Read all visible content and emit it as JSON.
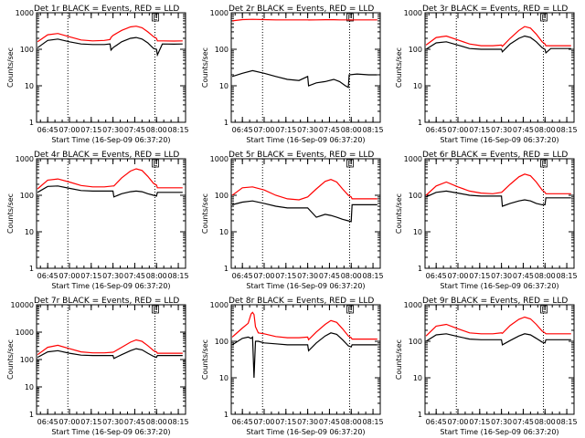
{
  "figure": {
    "x_ticks": [
      "06:45",
      "07:00",
      "07:15",
      "07:30",
      "07:45",
      "08:00",
      "08:15"
    ],
    "x_tick_minutes": [
      45,
      60,
      75,
      90,
      105,
      120,
      135
    ],
    "x_range_minutes": [
      37.33,
      140
    ],
    "dotted_line_minutes": [
      58.9,
      118.9
    ],
    "xlabel": "Start Time (16-Sep-09 06:37:20)",
    "ylabel": "Counts/sec",
    "marker_text": "E",
    "marker_minute": 118.9,
    "colors": {
      "events": "#000000",
      "lld": "#ff0000"
    }
  },
  "chart_data": [
    {
      "type": "line",
      "title": "Det 1r BLACK = Events, RED = LLD",
      "y_scale": "log",
      "ylim": [
        1,
        1000
      ],
      "y_ticks": [
        "1",
        "10",
        "100",
        "1000"
      ],
      "x": [
        38,
        45,
        52,
        60,
        68,
        76,
        84,
        88,
        88.6,
        90,
        96,
        102,
        106,
        110,
        114,
        118,
        120,
        120.6,
        124,
        132,
        138
      ],
      "series": [
        {
          "name": "LLD",
          "values": [
            160,
            250,
            270,
            220,
            180,
            170,
            175,
            185,
            210,
            240,
            330,
            410,
            430,
            390,
            300,
            220,
            200,
            170,
            170,
            168,
            170
          ]
        },
        {
          "name": "Events",
          "values": [
            110,
            175,
            190,
            160,
            140,
            135,
            135,
            140,
            95,
            110,
            160,
            200,
            210,
            190,
            150,
            105,
            100,
            70,
            140,
            138,
            140
          ]
        }
      ]
    },
    {
      "type": "line",
      "title": "Det 2r BLACK = Events, RED = LLD",
      "y_scale": "log",
      "ylim": [
        1,
        1000
      ],
      "y_ticks": [
        "1",
        "10",
        "100",
        "1000"
      ],
      "x": [
        38,
        45,
        52,
        60,
        68,
        76,
        84,
        90,
        90.6,
        96,
        102,
        108,
        112,
        116,
        118,
        118.6,
        124,
        132,
        138
      ],
      "series": [
        {
          "name": "LLD",
          "values": [
            600,
            650,
            660,
            650,
            640,
            640,
            640,
            640,
            635,
            640,
            645,
            645,
            640,
            640,
            640,
            635,
            640,
            640,
            640
          ]
        },
        {
          "name": "Events",
          "values": [
            18,
            22,
            26,
            22,
            18,
            15,
            14,
            18,
            10,
            12,
            13,
            15,
            13,
            10,
            9,
            20,
            21,
            20,
            20
          ]
        }
      ]
    },
    {
      "type": "line",
      "title": "Det 3r BLACK = Events, RED = LLD",
      "y_scale": "log",
      "ylim": [
        1,
        1000
      ],
      "y_ticks": [
        "1",
        "10",
        "100",
        "1000"
      ],
      "x": [
        38,
        45,
        52,
        60,
        68,
        76,
        84,
        90,
        90.6,
        96,
        102,
        106,
        110,
        114,
        118,
        120,
        120.6,
        124,
        132,
        138
      ],
      "series": [
        {
          "name": "LLD",
          "values": [
            130,
            210,
            230,
            180,
            140,
            125,
            125,
            130,
            120,
            200,
            330,
            420,
            380,
            260,
            160,
            140,
            125,
            125,
            125,
            125
          ]
        },
        {
          "name": "Events",
          "values": [
            100,
            150,
            160,
            130,
            105,
            100,
            100,
            100,
            85,
            140,
            200,
            230,
            210,
            160,
            110,
            100,
            80,
            105,
            105,
            105
          ]
        }
      ]
    },
    {
      "type": "line",
      "title": "Det 4r BLACK = Events, RED = LLD",
      "y_scale": "log",
      "ylim": [
        1,
        1000
      ],
      "y_ticks": [
        "1",
        "10",
        "100",
        "1000"
      ],
      "x": [
        38,
        45,
        52,
        60,
        68,
        76,
        84,
        90,
        90.6,
        96,
        102,
        106,
        110,
        114,
        118,
        120,
        120.6,
        124,
        132,
        138
      ],
      "series": [
        {
          "name": "LLD",
          "values": [
            150,
            260,
            280,
            230,
            185,
            170,
            170,
            180,
            180,
            300,
            460,
            530,
            480,
            330,
            210,
            190,
            160,
            160,
            160,
            160
          ]
        },
        {
          "name": "Events",
          "values": [
            120,
            175,
            180,
            155,
            135,
            130,
            130,
            130,
            90,
            110,
            125,
            130,
            125,
            110,
            100,
            95,
            120,
            120,
            120,
            120
          ]
        }
      ]
    },
    {
      "type": "line",
      "title": "Det 5r BLACK = Events, RED = LLD",
      "y_scale": "log",
      "ylim": [
        1,
        1000
      ],
      "y_ticks": [
        "1",
        "10",
        "100",
        "1000"
      ],
      "x": [
        38,
        45,
        52,
        60,
        68,
        76,
        84,
        90,
        96,
        102,
        106,
        110,
        114,
        118,
        120,
        120.6,
        124,
        132,
        138
      ],
      "series": [
        {
          "name": "LLD",
          "values": [
            100,
            160,
            170,
            140,
            100,
            80,
            75,
            90,
            150,
            240,
            270,
            230,
            150,
            100,
            90,
            80,
            80,
            80,
            80
          ]
        },
        {
          "name": "Events",
          "values": [
            55,
            65,
            70,
            60,
            50,
            45,
            45,
            45,
            25,
            30,
            28,
            25,
            22,
            20,
            19,
            55,
            55,
            55,
            55
          ]
        }
      ]
    },
    {
      "type": "line",
      "title": "Det 6r BLACK = Events, RED = LLD",
      "y_scale": "log",
      "ylim": [
        1,
        1000
      ],
      "y_ticks": [
        "1",
        "10",
        "100",
        "1000"
      ],
      "x": [
        38,
        45,
        52,
        60,
        68,
        76,
        84,
        90,
        90.6,
        96,
        102,
        106,
        110,
        114,
        118,
        120,
        120.6,
        124,
        132,
        138
      ],
      "series": [
        {
          "name": "LLD",
          "values": [
            100,
            180,
            230,
            170,
            130,
            115,
            110,
            120,
            125,
            200,
            320,
            380,
            340,
            230,
            140,
            120,
            110,
            110,
            110,
            110
          ]
        },
        {
          "name": "Events",
          "values": [
            90,
            120,
            130,
            115,
            100,
            95,
            95,
            95,
            50,
            60,
            70,
            75,
            70,
            60,
            55,
            55,
            85,
            85,
            85,
            85
          ]
        }
      ]
    },
    {
      "type": "line",
      "title": "Det 7r BLACK = Events, RED = LLD",
      "y_scale": "log",
      "ylim": [
        1,
        10000
      ],
      "y_ticks": [
        "1",
        "10",
        "100",
        "1000",
        "10000"
      ],
      "x": [
        38,
        45,
        52,
        60,
        68,
        76,
        84,
        90,
        90.6,
        96,
        102,
        106,
        110,
        114,
        118,
        120,
        120.6,
        124,
        132,
        138
      ],
      "series": [
        {
          "name": "LLD",
          "values": [
            150,
            280,
            330,
            250,
            190,
            175,
            175,
            185,
            190,
            280,
            430,
            520,
            460,
            320,
            210,
            190,
            170,
            170,
            170,
            170
          ]
        },
        {
          "name": "Events",
          "values": [
            120,
            190,
            210,
            170,
            145,
            140,
            140,
            140,
            110,
            150,
            210,
            250,
            225,
            170,
            130,
            120,
            140,
            140,
            140,
            140
          ]
        }
      ]
    },
    {
      "type": "line",
      "title": "Det 8r BLACK = Events, RED = LLD",
      "y_scale": "log",
      "ylim": [
        1,
        1000
      ],
      "y_ticks": [
        "1",
        "10",
        "100",
        "1000"
      ],
      "x": [
        38,
        45,
        49,
        51,
        52,
        53,
        54,
        56,
        60,
        68,
        76,
        84,
        90,
        90.6,
        96,
        102,
        106,
        110,
        114,
        118,
        120,
        120.6,
        124,
        132,
        138
      ],
      "series": [
        {
          "name": "LLD",
          "values": [
            130,
            230,
            310,
            560,
            620,
            540,
            250,
            170,
            160,
            135,
            125,
            125,
            130,
            110,
            180,
            290,
            370,
            330,
            220,
            140,
            125,
            115,
            115,
            115,
            115
          ]
        },
        {
          "name": "Events",
          "values": [
            80,
            120,
            130,
            120,
            130,
            10,
            100,
            100,
            90,
            85,
            80,
            80,
            80,
            55,
            90,
            140,
            170,
            155,
            110,
            75,
            70,
            80,
            80,
            80,
            80
          ]
        }
      ]
    },
    {
      "type": "line",
      "title": "Det 9r BLACK = Events, RED = LLD",
      "y_scale": "log",
      "ylim": [
        1,
        1000
      ],
      "y_ticks": [
        "1",
        "10",
        "100",
        "1000"
      ],
      "x": [
        38,
        45,
        52,
        60,
        68,
        76,
        84,
        90,
        90.6,
        96,
        102,
        106,
        110,
        114,
        118,
        120,
        120.6,
        124,
        132,
        138
      ],
      "series": [
        {
          "name": "LLD",
          "values": [
            140,
            260,
            290,
            220,
            170,
            160,
            160,
            170,
            165,
            270,
            400,
            460,
            410,
            290,
            190,
            170,
            160,
            160,
            160,
            160
          ]
        },
        {
          "name": "Events",
          "values": [
            100,
            150,
            160,
            135,
            115,
            110,
            110,
            110,
            80,
            105,
            140,
            160,
            150,
            120,
            95,
            90,
            110,
            110,
            110,
            110
          ]
        }
      ]
    }
  ]
}
